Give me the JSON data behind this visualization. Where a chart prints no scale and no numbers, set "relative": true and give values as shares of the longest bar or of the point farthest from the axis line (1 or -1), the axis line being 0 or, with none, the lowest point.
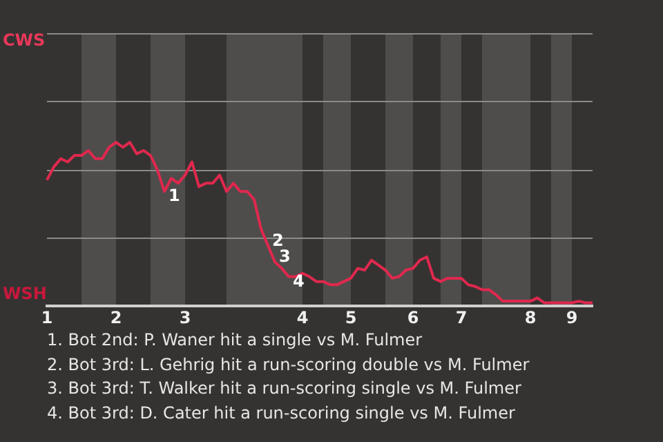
{
  "chart_data": {
    "type": "line",
    "categories": [
      "1",
      null,
      null,
      null,
      null,
      null,
      null,
      null,
      null,
      null,
      "2",
      null,
      null,
      null,
      null,
      null,
      null,
      null,
      null,
      null,
      "3",
      null,
      null,
      null,
      null,
      null,
      null,
      null,
      null,
      null,
      null,
      null,
      null,
      null,
      null,
      null,
      null,
      "4",
      null,
      null,
      null,
      null,
      null,
      null,
      "5",
      null,
      null,
      null,
      null,
      null,
      null,
      null,
      null,
      "6",
      null,
      null,
      null,
      null,
      null,
      null,
      "7",
      null,
      null,
      null,
      null,
      null,
      null,
      null,
      null,
      null,
      "8",
      null,
      null,
      null,
      null,
      null,
      "9",
      null,
      null,
      null
    ],
    "relative": true,
    "series": [
      {
        "color": "#e0284e",
        "values": [
          0.77,
          0.85,
          0.9,
          0.88,
          0.92,
          0.92,
          0.95,
          0.9,
          0.9,
          0.97,
          1,
          0.97,
          1,
          0.93,
          0.95,
          0.92,
          0.83,
          0.7,
          0.78,
          0.75,
          0.8,
          0.88,
          0.73,
          0.75,
          0.75,
          0.8,
          0.7,
          0.75,
          0.7,
          0.7,
          0.65,
          0.47,
          0.37,
          0.27,
          0.23,
          0.18,
          0.18,
          0.2,
          0.18,
          0.15,
          0.15,
          0.13,
          0.13,
          0.15,
          0.17,
          0.23,
          0.22,
          0.28,
          0.25,
          0.22,
          0.17,
          0.18,
          0.22,
          0.23,
          0.28,
          0.3,
          0.17,
          0.15,
          0.17,
          0.17,
          0.17,
          0.13,
          0.12,
          0.1,
          0.1,
          0.07,
          0.03,
          0.03,
          0.03,
          0.03,
          0.03,
          0.05,
          0.02,
          0.02,
          0.02,
          0.02,
          0.02,
          0.03,
          0.02,
          0.02
        ],
        "name": null
      }
    ],
    "ref_lines": [
      {
        "axis": "y",
        "value": 0.42,
        "color": "#8a8a8a"
      },
      {
        "axis": "y",
        "value": 0.83,
        "color": "#8a8a8a"
      },
      {
        "axis": "y",
        "value": 1.25,
        "color": "#8a8a8a"
      },
      {
        "axis": "y",
        "value": 1.67,
        "color": "#8a8a8a"
      }
    ],
    "marker": "none",
    "annotations": [
      "CWS",
      "WSH",
      "1",
      "2",
      "3",
      "4",
      "1. Bot 2nd: P. Waner hit a single vs M. Fulmer",
      "2. Bot 3rd: L. Gehrig hit a run-scoring double vs M. Fulmer",
      "3. Bot 3rd: T. Walker hit a run-scoring single vs M. Fulmer",
      "4. Bot 3rd: D. Cater hit a run-scoring single vs M. Fulmer"
    ]
  }
}
